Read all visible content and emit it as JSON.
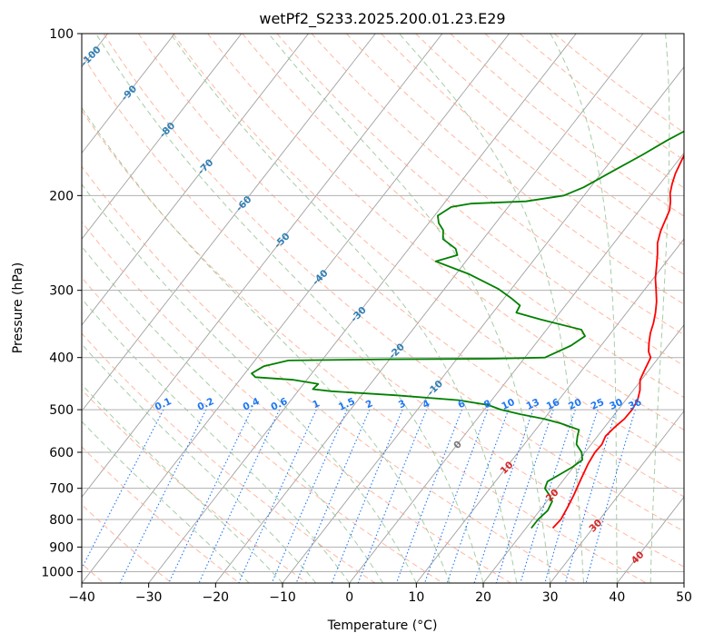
{
  "chart_data": {
    "type": "line",
    "title": "wetPf2_S233.2025.200.01.23.E29",
    "xlabel": "Temperature (°C)",
    "ylabel": "Pressure (hPa)",
    "xlim": [
      -40,
      50
    ],
    "ylim": [
      1050,
      100
    ],
    "y_scale": "log",
    "grid": true,
    "x_ticks": [
      -40,
      -30,
      -20,
      -10,
      0,
      10,
      20,
      30,
      40,
      50
    ],
    "x_tick_labels": [
      "−40",
      "−30",
      "−20",
      "−10",
      "0",
      "10",
      "20",
      "30",
      "40",
      "50"
    ],
    "y_ticks": [
      100,
      200,
      300,
      400,
      500,
      600,
      700,
      800,
      900,
      1000
    ],
    "y_tick_labels": [
      "100",
      "200",
      "300",
      "400",
      "500",
      "600",
      "700",
      "800",
      "900",
      "1000"
    ],
    "series": [
      {
        "color": "#ff0000",
        "points": [
          [
            24.0,
            830
          ],
          [
            24.2,
            800
          ],
          [
            23.8,
            760
          ],
          [
            23.3,
            720
          ],
          [
            22.8,
            690
          ],
          [
            22.3,
            660
          ],
          [
            21.8,
            630
          ],
          [
            21.5,
            600
          ],
          [
            21.6,
            580
          ],
          [
            21.2,
            560
          ],
          [
            21.5,
            540
          ],
          [
            22.0,
            520
          ],
          [
            22.1,
            500
          ],
          [
            21.8,
            480
          ],
          [
            21.0,
            460
          ],
          [
            19.8,
            440
          ],
          [
            19.3,
            420
          ],
          [
            18.8,
            400
          ],
          [
            17.8,
            390
          ],
          [
            16.8,
            375
          ],
          [
            15.9,
            360
          ],
          [
            15.2,
            345
          ],
          [
            14.3,
            330
          ],
          [
            13.2,
            315
          ],
          [
            11.8,
            300
          ],
          [
            10.3,
            285
          ],
          [
            9.0,
            270
          ],
          [
            7.8,
            257
          ],
          [
            6.5,
            245
          ],
          [
            5.6,
            233
          ],
          [
            5.0,
            222
          ],
          [
            4.5,
            213
          ],
          [
            3.6,
            205
          ],
          [
            2.6,
            198
          ],
          [
            1.8,
            190
          ],
          [
            1.1,
            182
          ],
          [
            0.5,
            172
          ],
          [
            -0.1,
            162
          ],
          [
            -0.5,
            152
          ],
          [
            -0.7,
            140
          ],
          [
            -0.6,
            130
          ],
          [
            -0.5,
            122
          ],
          [
            -0.1,
            114
          ],
          [
            0.1,
            106
          ],
          [
            -0.3,
            100
          ]
        ]
      },
      {
        "color": "#008000",
        "points": [
          [
            20.8,
            830
          ],
          [
            20.8,
            800
          ],
          [
            21.2,
            770
          ],
          [
            20.8,
            740
          ],
          [
            19.6,
            720
          ],
          [
            18.2,
            700
          ],
          [
            17.8,
            680
          ],
          [
            18.8,
            660
          ],
          [
            19.8,
            640
          ],
          [
            20.5,
            620
          ],
          [
            19.5,
            600
          ],
          [
            17.8,
            580
          ],
          [
            17.0,
            560
          ],
          [
            16.5,
            545
          ],
          [
            13.0,
            530
          ],
          [
            10.0,
            520
          ],
          [
            6.0,
            510
          ],
          [
            2.5,
            500
          ],
          [
            0.0,
            490
          ],
          [
            -5.0,
            480
          ],
          [
            -15.0,
            470
          ],
          [
            -25.0,
            462
          ],
          [
            -28.0,
            458
          ],
          [
            -27.8,
            448
          ],
          [
            -32.0,
            440
          ],
          [
            -38.0,
            435
          ],
          [
            -39.0,
            428
          ],
          [
            -38.0,
            415
          ],
          [
            -35.0,
            405
          ],
          [
            -20.0,
            403
          ],
          [
            -5.0,
            402
          ],
          [
            3.0,
            400
          ],
          [
            5.5,
            380
          ],
          [
            6.5,
            365
          ],
          [
            5.2,
            355
          ],
          [
            -2.0,
            340
          ],
          [
            -6.5,
            330
          ],
          [
            -6.8,
            320
          ],
          [
            -9.0,
            310
          ],
          [
            -12.0,
            298
          ],
          [
            -18.0,
            280
          ],
          [
            -24.5,
            265
          ],
          [
            -22.0,
            258
          ],
          [
            -23.0,
            251
          ],
          [
            -26.0,
            241
          ],
          [
            -27.0,
            232
          ],
          [
            -28.5,
            225
          ],
          [
            -29.5,
            218
          ],
          [
            -28.5,
            210
          ],
          [
            -26.0,
            207
          ],
          [
            -18.0,
            205
          ],
          [
            -13.0,
            200
          ],
          [
            -11.0,
            193
          ],
          [
            -8.5,
            180
          ],
          [
            -6.0,
            168
          ],
          [
            -4.0,
            158
          ],
          [
            -1.0,
            146
          ],
          [
            -0.8,
            136
          ],
          [
            -0.8,
            126
          ],
          [
            -0.5,
            116
          ],
          [
            -0.8,
            107
          ],
          [
            -0.9,
            100
          ]
        ]
      }
    ],
    "dry_adiabat_labels": [
      "-100",
      "-90",
      "-80",
      "-70",
      "-60",
      "-50",
      "-40",
      "-30",
      "-20",
      "-10",
      "0",
      "10",
      "20",
      "30",
      "40"
    ],
    "mixing_ratio_labels": [
      "0.1",
      "0.2",
      "0.4",
      "0.6",
      "1",
      "1.5",
      "2",
      "3",
      "4",
      "6",
      "8",
      "10",
      "13",
      "16",
      "20",
      "25",
      "30",
      "36"
    ],
    "colors": {
      "temperature": "#ff0000",
      "dewpoint": "#008000",
      "dry_adiabat": "#ff9f80",
      "moist_adiabat": "#90c090",
      "mixing_ratio": "#1f77f4",
      "isotherm": "#808080"
    }
  }
}
